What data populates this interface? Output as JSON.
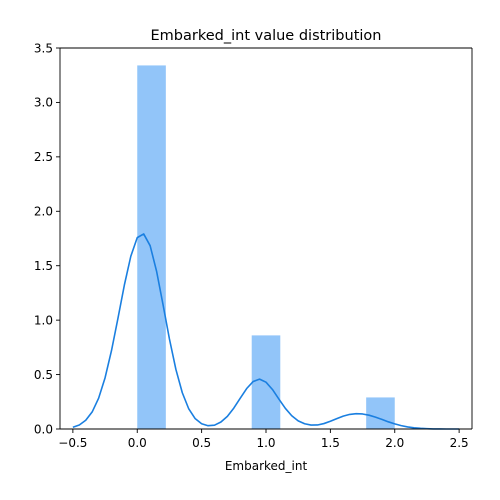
{
  "chart_data": {
    "type": "bar",
    "title": "Embarked_int value distribution",
    "xlabel": "Embarked_int",
    "ylabel": "",
    "xlim": [
      -0.6,
      2.6
    ],
    "ylim": [
      0,
      3.5
    ],
    "xticks": [
      -0.5,
      0.0,
      0.5,
      1.0,
      1.5,
      2.0,
      2.5
    ],
    "xtick_labels": [
      "−0.5",
      "0.0",
      "0.5",
      "1.0",
      "1.5",
      "2.0",
      "2.5"
    ],
    "yticks": [
      0.0,
      0.5,
      1.0,
      1.5,
      2.0,
      2.5,
      3.0,
      3.5
    ],
    "ytick_labels": [
      "0.0",
      "0.5",
      "1.0",
      "1.5",
      "2.0",
      "2.5",
      "3.0",
      "3.5"
    ],
    "grid": false,
    "legend": "none",
    "bars": [
      {
        "x0": 0.0,
        "x1": 0.222,
        "height": 3.34
      },
      {
        "x0": 0.889,
        "x1": 1.111,
        "height": 0.86
      },
      {
        "x0": 1.778,
        "x1": 2.0,
        "height": 0.29
      }
    ],
    "kde": {
      "x": [
        -0.5,
        -0.45,
        -0.4,
        -0.35,
        -0.3,
        -0.25,
        -0.2,
        -0.15,
        -0.1,
        -0.05,
        0.0,
        0.05,
        0.1,
        0.15,
        0.2,
        0.25,
        0.3,
        0.35,
        0.4,
        0.45,
        0.5,
        0.55,
        0.6,
        0.65,
        0.7,
        0.75,
        0.8,
        0.85,
        0.9,
        0.95,
        1.0,
        1.05,
        1.1,
        1.15,
        1.2,
        1.25,
        1.3,
        1.35,
        1.4,
        1.45,
        1.5,
        1.55,
        1.6,
        1.65,
        1.7,
        1.75,
        1.8,
        1.85,
        1.9,
        1.95,
        2.0,
        2.05,
        2.1,
        2.15,
        2.2,
        2.25,
        2.3,
        2.35,
        2.4,
        2.45,
        2.5
      ],
      "y": [
        0.016,
        0.037,
        0.08,
        0.157,
        0.283,
        0.47,
        0.72,
        1.016,
        1.323,
        1.587,
        1.758,
        1.792,
        1.684,
        1.45,
        1.144,
        0.827,
        0.548,
        0.333,
        0.185,
        0.095,
        0.048,
        0.03,
        0.035,
        0.064,
        0.116,
        0.192,
        0.283,
        0.372,
        0.436,
        0.458,
        0.43,
        0.363,
        0.275,
        0.19,
        0.122,
        0.075,
        0.048,
        0.036,
        0.037,
        0.05,
        0.071,
        0.095,
        0.118,
        0.134,
        0.141,
        0.138,
        0.127,
        0.109,
        0.088,
        0.066,
        0.047,
        0.031,
        0.019,
        0.011,
        0.006,
        0.003,
        0.001,
        0.001,
        0.0,
        0.0,
        0.0
      ]
    },
    "colors": {
      "bar_fill": "#92c5f9",
      "kde_line": "#1a7fe0",
      "axes": "#000000"
    }
  }
}
